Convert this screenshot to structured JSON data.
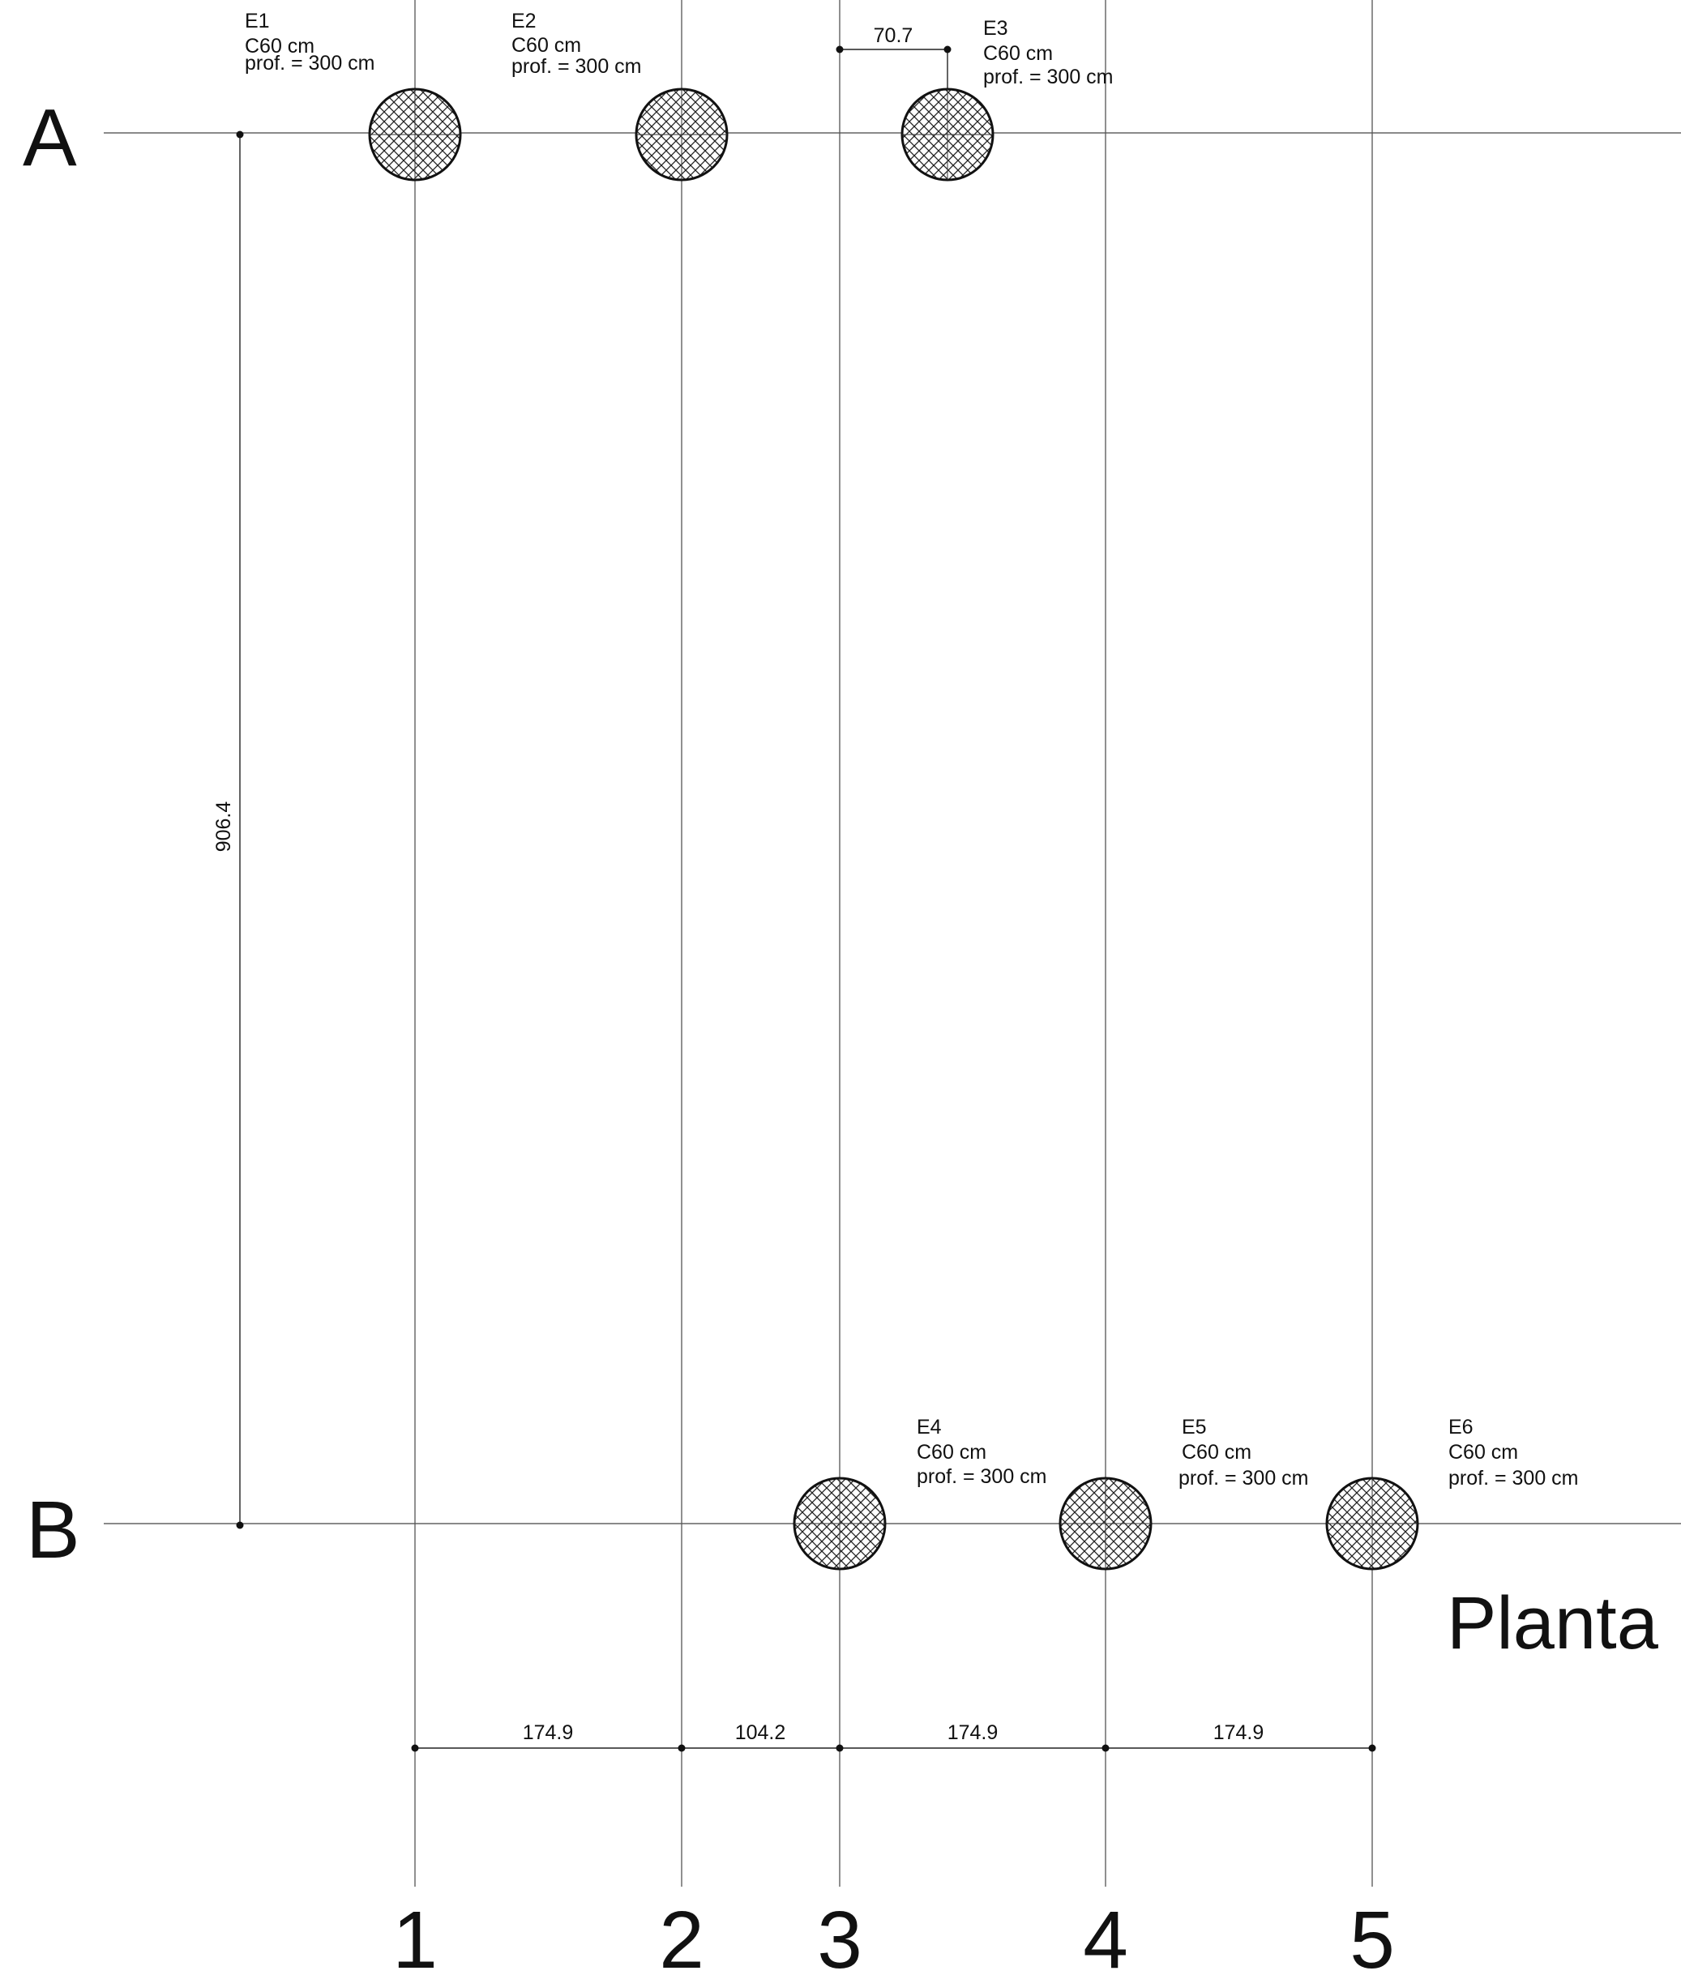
{
  "title": "Planta",
  "axes": {
    "rows": [
      "A",
      "B"
    ],
    "columns": [
      "1",
      "2",
      "3",
      "4",
      "5"
    ]
  },
  "dimensions": {
    "vertical_A_B": "906.4",
    "horizontal": [
      "174.9",
      "104.2",
      "174.9",
      "174.9"
    ],
    "e3_offset": "70.7"
  },
  "piles": [
    {
      "id": "E1",
      "section": "C60 cm",
      "depth": "prof. = 300 cm"
    },
    {
      "id": "E2",
      "section": "C60 cm",
      "depth": "prof. = 300 cm"
    },
    {
      "id": "E3",
      "section": "C60 cm",
      "depth": "prof. = 300 cm"
    },
    {
      "id": "E4",
      "section": "C60 cm",
      "depth": "prof. = 300 cm"
    },
    {
      "id": "E5",
      "section": "C60 cm",
      "depth": "prof. = 300 cm"
    },
    {
      "id": "E6",
      "section": "C60 cm",
      "depth": "prof. = 300 cm"
    }
  ]
}
